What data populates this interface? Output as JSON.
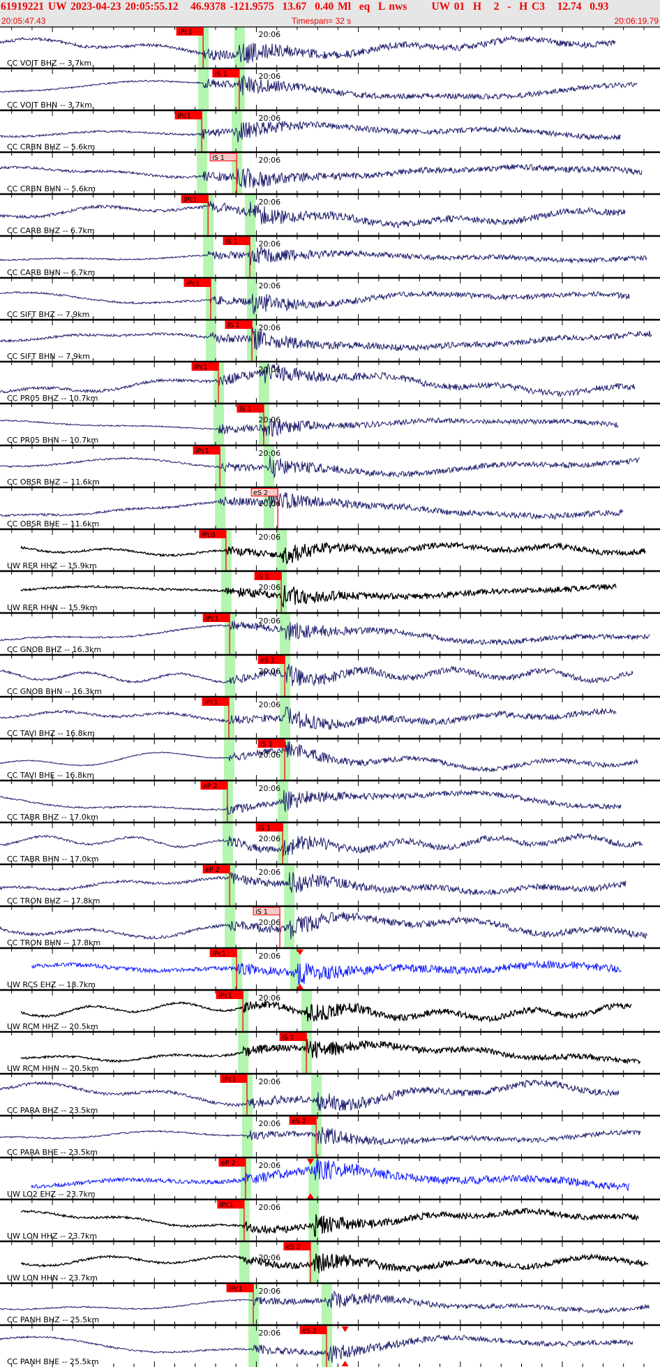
{
  "header": {
    "event_line": "61919221 UW 2023-04-23 20:05:55.12   46.9378 -121.9575  13.67  0.40 Ml  eq  L nws      UW 01  H   2  -  H C3   12.74  0.93",
    "start_time": "20:05:47.43",
    "timespan": "Timespan=  32 s",
    "end_time": "20:06:19.79"
  },
  "minute_label": "20:06",
  "colors": {
    "broadband": "#1c1c6b",
    "highrate": "#000000",
    "short_period": "#0a14ff",
    "pick": "#ff0000",
    "pick_unselected": "#f6c8c8",
    "window": "#b4f5b0"
  },
  "channels": [
    {
      "label": "CC VOIT BHZ -- 3.7km",
      "type": "broadband",
      "pick": {
        "label": "iPc1",
        "time": "20:05:57.39"
      },
      "p": "20:05:57.39",
      "s": "20:05:59.16"
    },
    {
      "label": "CC VOIT BHN -- 3.7km",
      "type": "broadband",
      "pick": {
        "label": "iS 1",
        "time": "20:05:59.16"
      },
      "p": "20:05:57.39",
      "s": "20:05:59.16"
    },
    {
      "label": "CC CRBN BHZ -- 5.6km",
      "type": "broadband",
      "pick": {
        "label": "iPc1",
        "time": "20:05:57.32"
      },
      "p": "20:05:57.32",
      "s": "20:05:59.03"
    },
    {
      "label": "CC CRBN BHN -- 5.6km",
      "type": "broadband",
      "pick": {
        "label": "iS 1",
        "time": "20:05:59.03",
        "unselected": true
      },
      "p": "20:05:57.32",
      "s": "20:05:59.03"
    },
    {
      "label": "CC CARB BHZ -- 6.7km",
      "type": "broadband",
      "pick": {
        "label": "iPc1",
        "time": "20:05:57.63"
      },
      "p": "20:05:57.63",
      "s": "20:05:59.68"
    },
    {
      "label": "CC CARB BHN -- 6.7km",
      "type": "broadband",
      "pick": {
        "label": "iS 1",
        "time": "20:05:59.68"
      },
      "p": "20:05:57.63",
      "s": "20:05:59.68"
    },
    {
      "label": "CC SIFT BHZ -- 7.9km",
      "type": "broadband",
      "pick": {
        "label": "iPc1",
        "time": "20:05:57.76"
      },
      "p": "20:05:57.76",
      "s": "20:05:59.78"
    },
    {
      "label": "CC SIFT BHN -- 7.9km",
      "type": "broadband",
      "pick": {
        "label": "iS 1",
        "time": "20:05:59.78"
      },
      "p": "20:05:57.76",
      "s": "20:05:59.78"
    },
    {
      "label": "CC PR05 BHZ -- 10.7km",
      "type": "broadband",
      "pick": {
        "label": "iPc1",
        "time": "20:05:58.14"
      },
      "p": "20:05:58.14",
      "s": "20:06:00.36"
    },
    {
      "label": "CC PR05 BHN -- 10.7km",
      "type": "broadband",
      "pick": {
        "label": "iS 1",
        "time": "20:06:00.36"
      },
      "p": "20:05:58.14",
      "s": "20:06:00.36"
    },
    {
      "label": "CC OBSR BHZ -- 11.6km",
      "type": "broadband",
      "pick": {
        "label": "iPc1",
        "time": "20:05:58.21"
      },
      "p": "20:05:58.21",
      "s": "20:06:00.60"
    },
    {
      "label": "CC OBSR BHE -- 11.6km",
      "type": "broadband",
      "pick": {
        "label": "eS 2",
        "time": "20:06:01.05",
        "unselected": true
      },
      "p": "20:05:58.21",
      "s": "20:06:00.60"
    },
    {
      "label": "UW RER HHZ -- 15.9km",
      "type": "highrate",
      "pick": {
        "label": "iPc0",
        "time": "20:05:58.51"
      },
      "p": "20:05:58.51",
      "s": "20:06:01.22"
    },
    {
      "label": "UW RER HHN -- 15.9km",
      "type": "highrate",
      "pick": {
        "label": "iS 1",
        "time": "20:06:01.22"
      },
      "p": "20:05:58.51",
      "s": "20:06:01.22"
    },
    {
      "label": "CC GNOB BHZ -- 16.3km",
      "type": "broadband",
      "pick": {
        "label": "iPc1",
        "time": "20:05:58.69"
      },
      "p": "20:05:58.69",
      "s": "20:06:01.39"
    },
    {
      "label": "CC GNOB BHN -- 16.3km",
      "type": "broadband",
      "pick": {
        "label": "eS 2",
        "time": "20:06:01.39"
      },
      "p": "20:05:58.69",
      "s": "20:06:01.39"
    },
    {
      "label": "CC TAVI BHZ -- 16.8km",
      "type": "broadband",
      "pick": {
        "label": "iPc1",
        "time": "20:05:58.65"
      },
      "p": "20:05:58.65",
      "s": "20:06:01.39"
    },
    {
      "label": "CC TAVI BHE -- 16.8km",
      "type": "broadband",
      "pick": {
        "label": "iS 1",
        "time": "20:06:01.39"
      },
      "p": "20:05:58.65",
      "s": "20:06:01.39"
    },
    {
      "label": "CC TABR BHZ -- 17.0km",
      "type": "broadband",
      "pick": {
        "label": "eP 2",
        "time": "20:05:58.58"
      },
      "p": "20:05:58.58",
      "s": "20:06:01.29"
    },
    {
      "label": "CC TABR BHN -- 17.0km",
      "type": "broadband",
      "pick": {
        "label": "iS 1",
        "time": "20:06:01.29"
      },
      "p": "20:05:58.58",
      "s": "20:06:01.29"
    },
    {
      "label": "CC TRON BHZ -- 17.8km",
      "type": "broadband",
      "pick": {
        "label": "eP 2",
        "time": "20:05:58.69"
      },
      "p": "20:05:58.69",
      "s": "20:06:01.60"
    },
    {
      "label": "CC TRON BHN -- 17.8km",
      "type": "broadband",
      "pick": {
        "label": "iS 1",
        "time": "20:06:01.15",
        "unselected": true
      },
      "p": "20:05:58.69",
      "s": "20:06:01.60"
    },
    {
      "label": "UW RCS EHZ -- 18.7km",
      "type": "short_period",
      "pick": {
        "label": "iPc1",
        "time": "20:05:59.03"
      },
      "p": "20:05:59.03",
      "s": "20:06:01.89",
      "marker": "20:06:02.14"
    },
    {
      "label": "UW RCM HHZ -- 20.5km",
      "type": "highrate",
      "pick": {
        "label": "iPc1",
        "time": "20:05:59.34"
      },
      "p": "20:05:59.34",
      "s": "20:06:02.45"
    },
    {
      "label": "UW RCM HHN -- 20.5km",
      "type": "highrate",
      "pick": {
        "label": "iS 1",
        "time": "20:06:02.45"
      },
      "p": "20:05:59.34",
      "s": "20:06:02.45"
    },
    {
      "label": "CC PARA BHZ -- 23.5km",
      "type": "broadband",
      "pick": {
        "label": "iPc1",
        "time": "20:05:59.54"
      },
      "p": "20:05:59.54",
      "s": "20:06:02.93"
    },
    {
      "label": "CC PARA BHE -- 23.5km",
      "type": "broadband",
      "pick": {
        "label": "eS 2",
        "time": "20:06:02.93"
      },
      "p": "20:05:59.54",
      "s": "20:06:02.93"
    },
    {
      "label": "UW LO2 EHZ -- 23.7km",
      "type": "short_period",
      "pick": {
        "label": "eP 2",
        "time": "20:05:59.47"
      },
      "p": "20:05:59.47",
      "s": "20:06:02.80",
      "marker": "20:06:02.65"
    },
    {
      "label": "UW LON HHZ -- 23.7km",
      "type": "highrate",
      "pick": {
        "label": "iPc1",
        "time": "20:05:59.40"
      },
      "p": "20:05:59.40",
      "s": "20:06:02.80"
    },
    {
      "label": "UW LON HHN -- 23.7km",
      "type": "highrate",
      "pick": {
        "label": "eS 2",
        "time": "20:06:02.65"
      },
      "p": "20:05:59.40",
      "s": "20:06:02.80"
    },
    {
      "label": "CC PANH BHZ -- 25.5km",
      "type": "broadband",
      "pick": {
        "label": "iPc1",
        "time": "20:05:59.85"
      },
      "p": "20:05:59.85",
      "s": "20:06:03.44"
    },
    {
      "label": "CC PANH BHE -- 25.5km",
      "type": "broadband",
      "pick": {
        "label": "eS 2",
        "time": "20:06:03.44"
      },
      "p": "20:05:59.85",
      "s": "20:06:03.44",
      "marker": "20:06:04.35"
    }
  ]
}
